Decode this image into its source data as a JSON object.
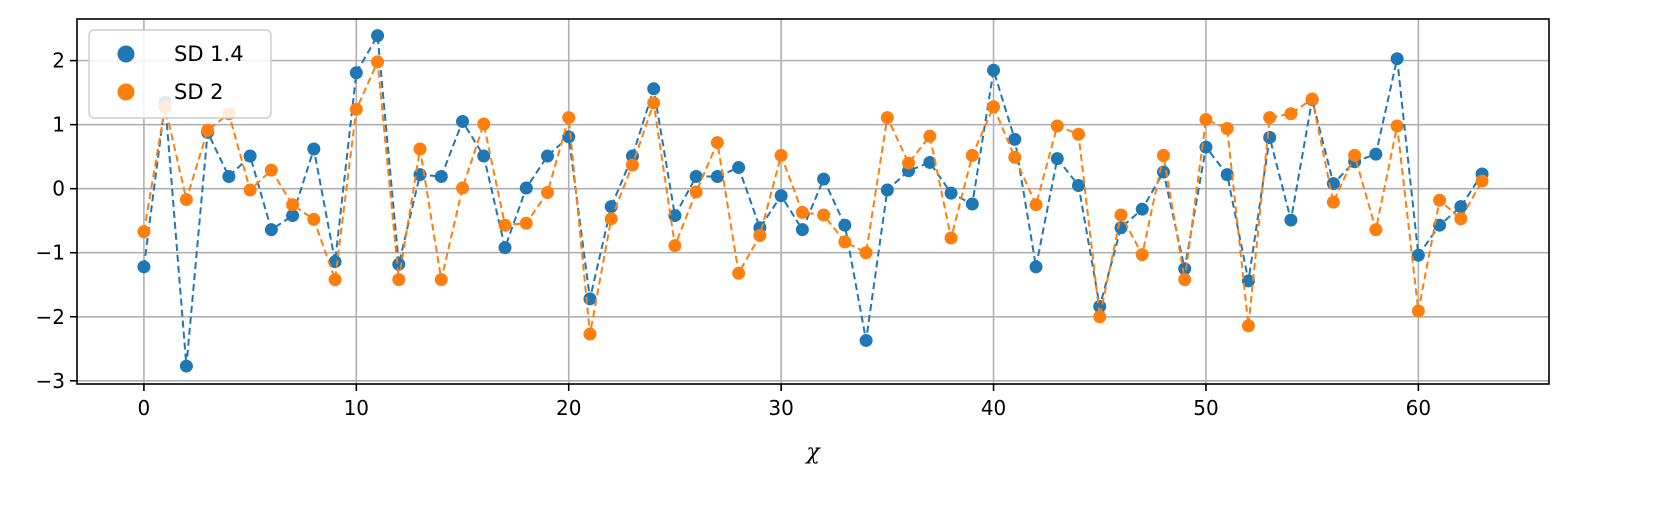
{
  "chart_data": {
    "type": "line",
    "title": "",
    "xlabel": "χ",
    "ylabel": "",
    "xlim": [
      -3.15,
      66.15
    ],
    "ylim": [
      -3.05,
      2.65
    ],
    "xticks": [
      0,
      10,
      20,
      30,
      40,
      50,
      60
    ],
    "yticks": [
      -3,
      -2,
      -1,
      0,
      1,
      2
    ],
    "xtick_labels": [
      "0",
      "10",
      "20",
      "30",
      "40",
      "50",
      "60"
    ],
    "ytick_labels": [
      "−3",
      "−2",
      "−1",
      "0",
      "1",
      "2"
    ],
    "grid": true,
    "legend": {
      "position": "upper-left"
    },
    "x": [
      0,
      1,
      2,
      3,
      4,
      5,
      6,
      7,
      8,
      9,
      10,
      11,
      12,
      13,
      14,
      15,
      16,
      17,
      18,
      19,
      20,
      21,
      22,
      23,
      24,
      25,
      26,
      27,
      28,
      29,
      30,
      31,
      32,
      33,
      34,
      35,
      36,
      37,
      38,
      39,
      40,
      41,
      42,
      43,
      44,
      45,
      46,
      47,
      48,
      49,
      50,
      51,
      52,
      53,
      54,
      55,
      56,
      57,
      58,
      59,
      60,
      61,
      62,
      63
    ],
    "series": [
      {
        "name": "SD 1.4",
        "color": "#1f77b4",
        "marker": "circle",
        "linestyle": "dashed",
        "values": [
          -1.22,
          1.35,
          -2.77,
          0.88,
          0.19,
          0.51,
          -0.64,
          -0.42,
          0.62,
          -1.14,
          1.81,
          2.39,
          -1.18,
          0.22,
          0.19,
          1.05,
          0.51,
          -0.92,
          0.01,
          0.51,
          0.81,
          -1.72,
          -0.28,
          0.51,
          1.56,
          -0.42,
          0.19,
          0.19,
          0.33,
          -0.61,
          -0.11,
          -0.64,
          0.15,
          -0.57,
          -2.37,
          -0.02,
          0.28,
          0.41,
          -0.07,
          -0.24,
          1.85,
          0.77,
          -1.22,
          0.47,
          0.05,
          -1.84,
          -0.61,
          -0.32,
          0.26,
          -1.25,
          0.65,
          0.22,
          -1.44,
          0.8,
          -0.49,
          1.39,
          0.08,
          0.42,
          0.54,
          2.03,
          -1.04,
          -0.57,
          -0.28,
          0.23
        ]
      },
      {
        "name": "SD 2",
        "color": "#ff7f0e",
        "marker": "circle",
        "linestyle": "dashed",
        "values": [
          -0.67,
          1.28,
          -0.17,
          0.91,
          1.17,
          -0.02,
          0.29,
          -0.25,
          -0.48,
          -1.42,
          1.24,
          1.98,
          -1.42,
          0.62,
          -1.42,
          0.01,
          1.01,
          -0.57,
          -0.54,
          -0.06,
          1.11,
          -2.27,
          -0.47,
          0.37,
          1.34,
          -0.89,
          -0.05,
          0.72,
          -1.32,
          -0.73,
          0.52,
          -0.37,
          -0.41,
          -0.83,
          -1.0,
          1.11,
          0.4,
          0.82,
          -0.77,
          0.52,
          1.28,
          0.49,
          -0.25,
          0.98,
          0.85,
          -2.0,
          -0.41,
          -1.03,
          0.52,
          -1.42,
          1.08,
          0.94,
          -2.14,
          1.11,
          1.17,
          1.4,
          -0.21,
          0.52,
          -0.64,
          0.98,
          -1.91,
          -0.18,
          -0.47,
          0.12
        ]
      }
    ]
  }
}
